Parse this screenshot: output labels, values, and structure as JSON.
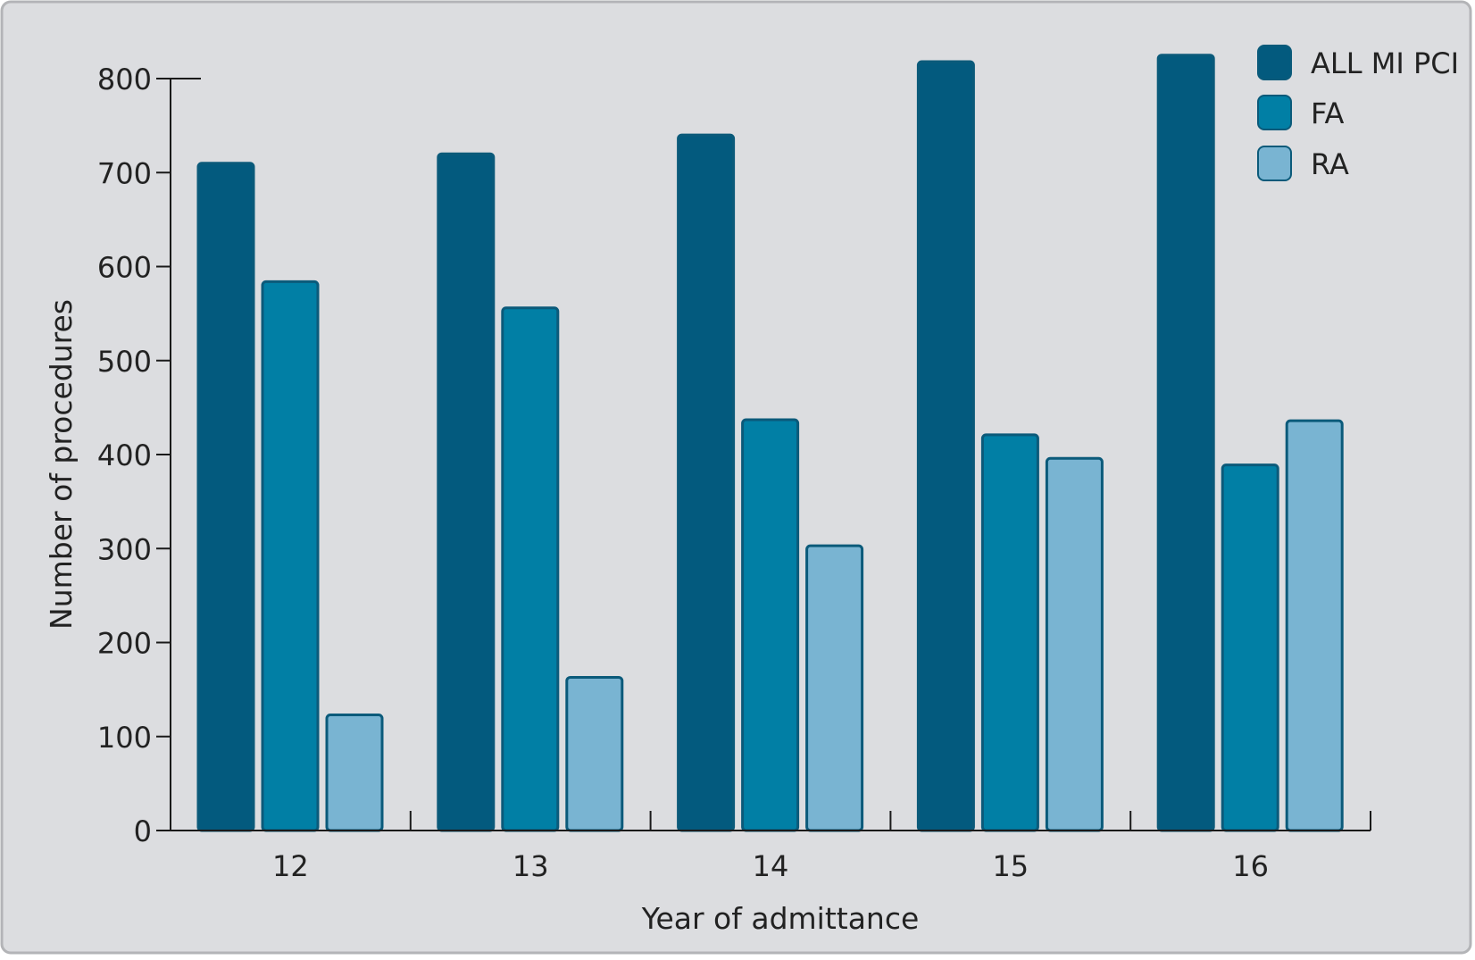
{
  "chart_data": {
    "type": "bar",
    "title": "",
    "xlabel": "Year of admittance",
    "ylabel": "Number of procedures",
    "categories": [
      "12",
      "13",
      "14",
      "15",
      "16"
    ],
    "series": [
      {
        "name": "ALL MI PCI",
        "values": [
          710,
          720,
          740,
          818,
          825
        ],
        "color": "#035a7e"
      },
      {
        "name": "FA",
        "values": [
          584,
          556,
          437,
          421,
          389
        ],
        "color": "#017fa5"
      },
      {
        "name": "RA",
        "values": [
          123,
          163,
          303,
          396,
          436
        ],
        "color": "#79b4d2"
      }
    ],
    "ylim": [
      0,
      800
    ],
    "yticks": [
      0,
      100,
      200,
      300,
      400,
      500,
      600,
      700,
      800
    ],
    "grid": false,
    "legend_position": "top-right",
    "colors": {
      "background": "#dcdde0",
      "frame": "#b3b4b7",
      "axis": "#1a1a1a",
      "bar_stroke": "#0b5a7a",
      "text": "#222222"
    }
  }
}
